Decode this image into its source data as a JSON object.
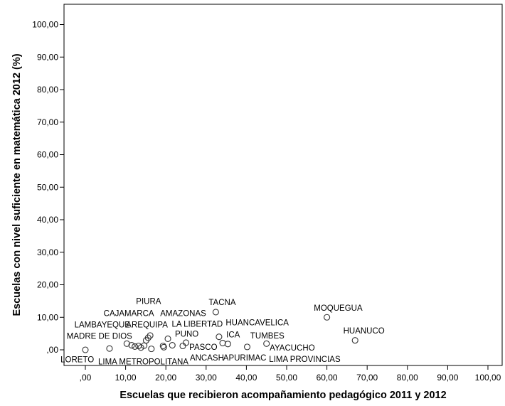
{
  "chart_data": {
    "type": "scatter",
    "title": "",
    "xlabel": "Escuelas que recibieron acompañamiento pedagógico 2011 y 2012",
    "ylabel": "Escuelas con nivel suficiente en matemática 2012 (%)",
    "xlim": [
      -5,
      105
    ],
    "ylim": [
      -5,
      106
    ],
    "x_ticks": [
      ",00",
      "10,00",
      "20,00",
      "30,00",
      "40,00",
      "50,00",
      "60,00",
      "70,00",
      "80,00",
      "90,00",
      "100,00"
    ],
    "y_ticks": [
      ",00",
      "10,00",
      "20,00",
      "30,00",
      "40,00",
      "50,00",
      "60,00",
      "70,00",
      "80,00",
      "90,00",
      "100,00"
    ],
    "grid": false,
    "marker": "hollow-circle",
    "points": [
      {
        "x": 0.0,
        "y": 0.0
      },
      {
        "x": 6.0,
        "y": 0.4
      },
      {
        "x": 10.3,
        "y": 1.9
      },
      {
        "x": 11.5,
        "y": 1.4
      },
      {
        "x": 12.3,
        "y": 1.0
      },
      {
        "x": 13.2,
        "y": 1.2
      },
      {
        "x": 13.8,
        "y": 0.7
      },
      {
        "x": 14.6,
        "y": 1.3
      },
      {
        "x": 15.1,
        "y": 2.9
      },
      {
        "x": 15.6,
        "y": 3.7
      },
      {
        "x": 16.1,
        "y": 4.4
      },
      {
        "x": 16.4,
        "y": 0.3
      },
      {
        "x": 19.3,
        "y": 1.2
      },
      {
        "x": 19.5,
        "y": 0.8
      },
      {
        "x": 20.5,
        "y": 3.4
      },
      {
        "x": 21.6,
        "y": 1.4
      },
      {
        "x": 24.2,
        "y": 1.2
      },
      {
        "x": 25.0,
        "y": 2.2
      },
      {
        "x": 32.4,
        "y": 11.6
      },
      {
        "x": 33.2,
        "y": 4.0
      },
      {
        "x": 34.1,
        "y": 2.1
      },
      {
        "x": 35.4,
        "y": 1.8
      },
      {
        "x": 40.2,
        "y": 0.9
      },
      {
        "x": 45.0,
        "y": 1.9
      },
      {
        "x": 60.0,
        "y": 10.0
      },
      {
        "x": 67.0,
        "y": 2.9
      }
    ],
    "annotations": [
      {
        "text": "PIURA",
        "x": 15.7,
        "y": 15.0
      },
      {
        "text": "CAJAMARCA",
        "x": 10.8,
        "y": 11.3
      },
      {
        "text": "AMAZONAS",
        "x": 24.3,
        "y": 11.3
      },
      {
        "text": "TACNA",
        "x": 34.0,
        "y": 14.6
      },
      {
        "text": "LAMBAYEQUE",
        "x": 4.2,
        "y": 7.8
      },
      {
        "text": "AREQUIPA",
        "x": 15.3,
        "y": 7.8
      },
      {
        "text": "LA LIBERTAD",
        "x": 27.8,
        "y": 8.0
      },
      {
        "text": "HUANCAVELICA",
        "x": 42.7,
        "y": 8.4
      },
      {
        "text": "MOQUEGUA",
        "x": 62.8,
        "y": 12.9
      },
      {
        "text": "MADRE DE DIOS",
        "x": 3.5,
        "y": 4.3
      },
      {
        "text": "PUNO",
        "x": 25.2,
        "y": 4.9
      },
      {
        "text": "ICA",
        "x": 36.7,
        "y": 4.7
      },
      {
        "text": "TUMBES",
        "x": 45.2,
        "y": 4.4
      },
      {
        "text": "HUANUCO",
        "x": 69.2,
        "y": 5.9
      },
      {
        "text": "PASCO",
        "x": 29.3,
        "y": 0.9
      },
      {
        "text": "AYACUCHO",
        "x": 51.4,
        "y": 0.7
      },
      {
        "text": "ANCASH",
        "x": 30.2,
        "y": -2.4
      },
      {
        "text": "APURIMAC",
        "x": 39.6,
        "y": -2.4
      },
      {
        "text": "LORETO",
        "x": -2.0,
        "y": -2.9
      },
      {
        "text": "LIMA METROPOLITANA",
        "x": 14.4,
        "y": -3.6
      },
      {
        "text": "LIMA PROVINCIAS",
        "x": 54.5,
        "y": -2.8
      }
    ]
  }
}
